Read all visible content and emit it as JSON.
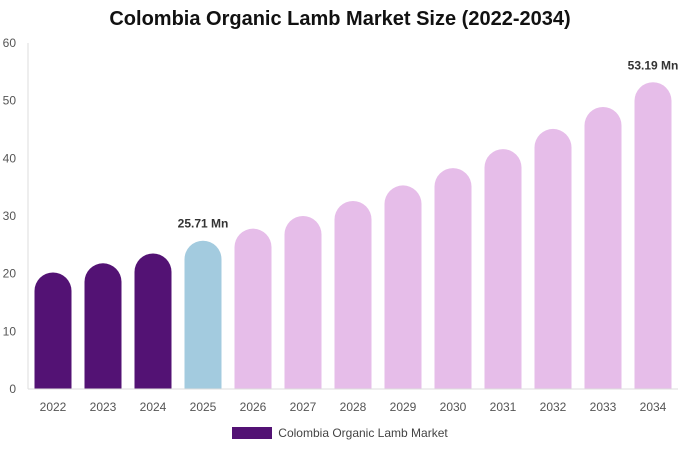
{
  "chart_data": {
    "type": "bar",
    "title": "Colombia Organic Lamb Market Size (2022-2034)",
    "categories": [
      "2022",
      "2023",
      "2024",
      "2025",
      "2026",
      "2027",
      "2028",
      "2029",
      "2030",
      "2031",
      "2032",
      "2033",
      "2034"
    ],
    "series": [
      {
        "name": "Colombia Organic Lamb Market",
        "values": [
          20.2,
          21.8,
          23.5,
          25.71,
          27.8,
          30.0,
          32.6,
          35.3,
          38.3,
          41.6,
          45.1,
          48.9,
          53.19
        ]
      }
    ],
    "bar_colors": [
      "#531274",
      "#531274",
      "#531274",
      "#a3cbdf",
      "#e6bde9",
      "#e6bde9",
      "#e6bde9",
      "#e6bde9",
      "#e6bde9",
      "#e6bde9",
      "#e6bde9",
      "#e6bde9",
      "#e6bde9"
    ],
    "data_labels": [
      {
        "category": "2025",
        "text": "25.71 Mn"
      },
      {
        "category": "2034",
        "text": "53.19 Mn"
      }
    ],
    "ylim": [
      0,
      60
    ],
    "yticks": [
      0,
      10,
      20,
      30,
      40,
      50,
      60
    ],
    "xlabel": "",
    "ylabel": "",
    "grid": false,
    "legend_position": "bottom-center",
    "legend_color": "#531274"
  }
}
